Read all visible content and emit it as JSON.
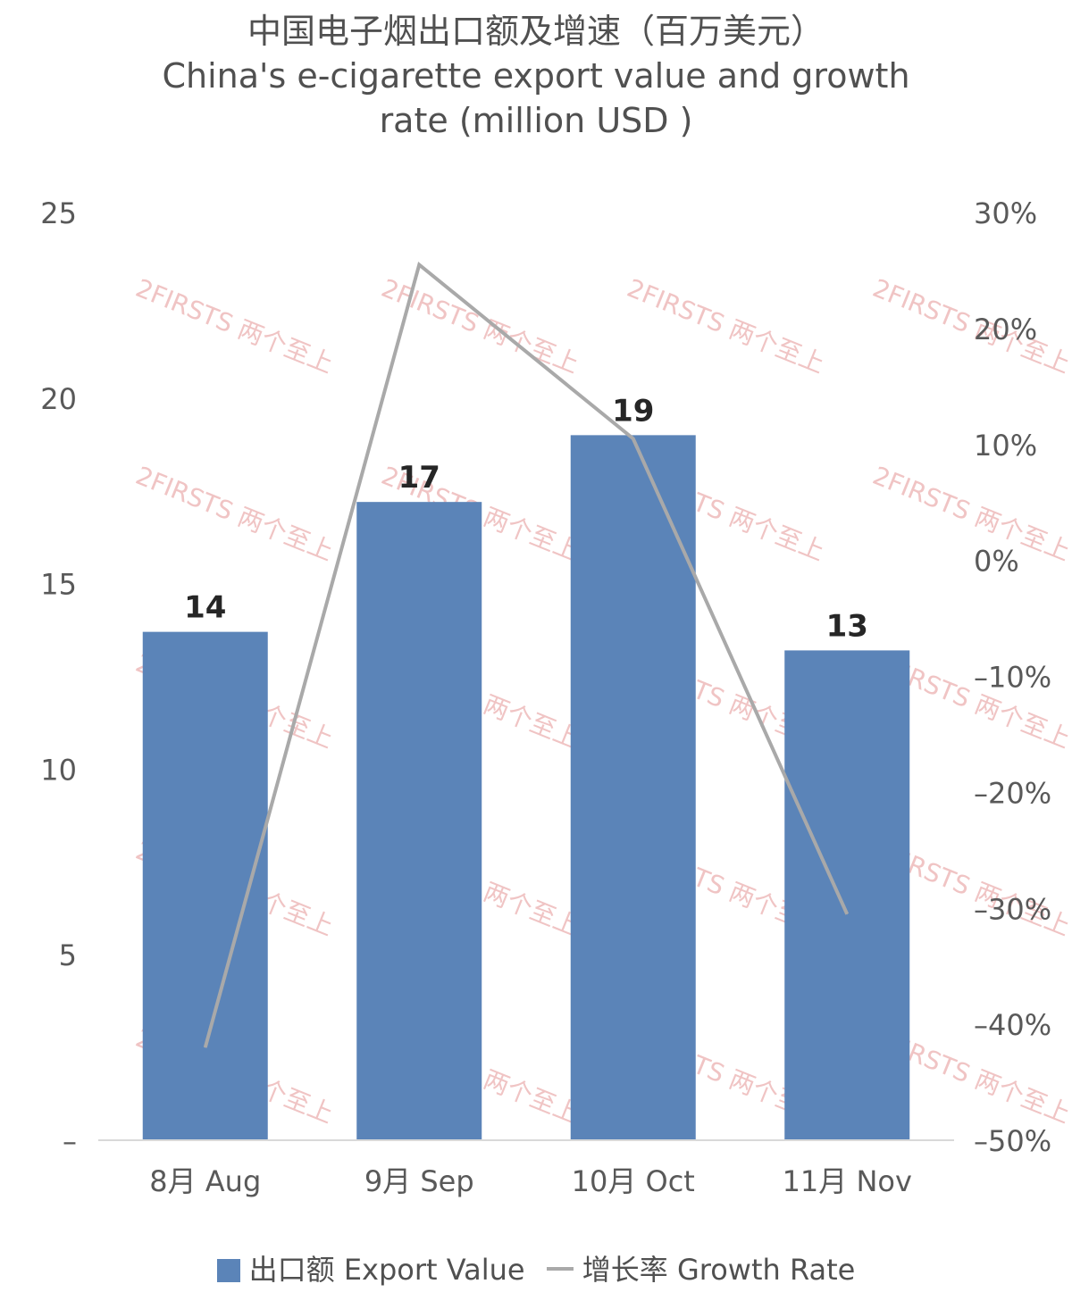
{
  "chart_data": {
    "type": "bar",
    "title_cn": "中国电子烟出口额及增速（百万美元）",
    "title_en_line1": "China's e-cigarette export value and growth",
    "title_en_line2": "rate (million USD )",
    "categories": [
      "8月 Aug",
      "9月 Sep",
      "10月 Oct",
      "11月 Nov"
    ],
    "series": [
      {
        "name": "出口额 Export Value",
        "type": "bar",
        "axis": "left",
        "values": [
          13.7,
          17.2,
          19.0,
          13.2
        ],
        "labels": [
          "14",
          "17",
          "19",
          "13"
        ],
        "color": "#5b84b8"
      },
      {
        "name": "增长率 Growth Rate",
        "type": "line",
        "axis": "right",
        "values": [
          -42,
          25.5,
          10.5,
          -30.5
        ],
        "color": "#a9a9a9"
      }
    ],
    "left_axis": {
      "min": 0,
      "max": 25,
      "ticks": [
        "–",
        "5",
        "10",
        "15",
        "20",
        "25"
      ]
    },
    "right_axis": {
      "min": -50,
      "max": 30,
      "ticks": [
        "–50%",
        "–40%",
        "–30%",
        "–20%",
        "–10%",
        "0%",
        "10%",
        "20%",
        "30%"
      ]
    },
    "watermark": "2FIRSTS 两个至上"
  },
  "legend": {
    "bar_label": "出口额 Export Value",
    "line_label": "增长率 Growth Rate"
  }
}
